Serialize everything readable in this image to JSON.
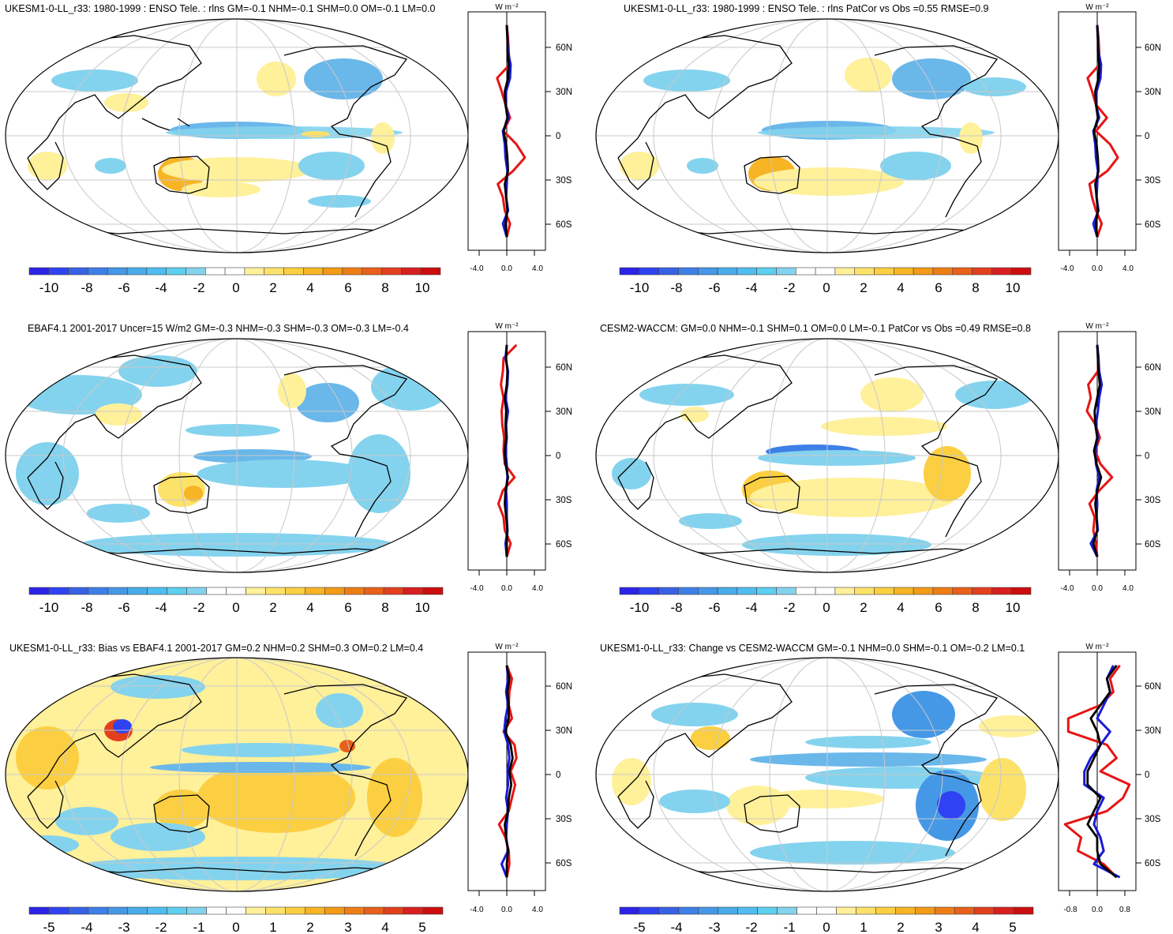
{
  "figure": {
    "colors": {
      "blue_ramp": [
        "#2b23e6",
        "#2f43f2",
        "#3762e6",
        "#3e7fe8",
        "#4598e6",
        "#49abea",
        "#50bdf0",
        "#5ecfee",
        "#84d3ee",
        "#ffffff",
        "#ffffff",
        "#fff09a",
        "#fde26a",
        "#fbcf41",
        "#f7b424",
        "#f39a17",
        "#ee7d15",
        "#e8601a",
        "#e2401d",
        "#d81f1f",
        "#cc0d0d"
      ],
      "zonal_red": "#e81414",
      "zonal_blue": "#1a1ad6",
      "zonal_black": "#000000",
      "grid": "#c8c8c8"
    }
  },
  "panels": [
    {
      "id": "p1",
      "title": "UKESM1-0-LL_r33: 1980-1999 : ENSO Tele. : rlns GM=-0.1 NHM=-0.1 SHM=0.0 OM=-0.1 LM=0.0",
      "zonal": {
        "unit_label": "W m⁻²",
        "x_ticks": [
          "-4.0",
          "0.0",
          "4.0"
        ],
        "lat_ticks": [
          "60N",
          "30N",
          "0",
          "30S",
          "60S"
        ]
      },
      "colorbar": {
        "labels": [
          "-10",
          "-8",
          "-6",
          "-4",
          "-2",
          "0",
          "2",
          "4",
          "6",
          "8",
          "10"
        ]
      }
    },
    {
      "id": "p2",
      "title": "UKESM1-0-LL_r33: 1980-1999 : ENSO Tele. : rlns PatCor vs Obs =0.55 RMSE=0.9",
      "zonal": {
        "unit_label": "W m⁻²",
        "x_ticks": [
          "-4.0",
          "0.0",
          "4.0"
        ],
        "lat_ticks": [
          "60N",
          "30N",
          "0",
          "30S",
          "60S"
        ]
      },
      "colorbar": {
        "labels": [
          "-10",
          "-8",
          "-6",
          "-4",
          "-2",
          "0",
          "2",
          "4",
          "6",
          "8",
          "10"
        ]
      }
    },
    {
      "id": "p3",
      "title": "EBAF4.1 2001-2017 Uncer=15 W/m2 GM=-0.3 NHM=-0.3 SHM=-0.3 OM=-0.3 LM=-0.4",
      "zonal": {
        "unit_label": "W m⁻²",
        "x_ticks": [
          "-4.0",
          "0.0",
          "4.0"
        ],
        "lat_ticks": [
          "60N",
          "30N",
          "0",
          "30S",
          "60S"
        ]
      },
      "colorbar": {
        "labels": [
          "-10",
          "-8",
          "-6",
          "-4",
          "-2",
          "0",
          "2",
          "4",
          "6",
          "8",
          "10"
        ]
      }
    },
    {
      "id": "p4",
      "title": "CESM2-WACCM: GM=0.0 NHM=-0.1 SHM=0.1 OM=0.0 LM=-0.1 PatCor vs Obs =0.49 RMSE=0.8",
      "zonal": {
        "unit_label": "W m⁻²",
        "x_ticks": [
          "-4.0",
          "0.0",
          "4.0"
        ],
        "lat_ticks": [
          "60N",
          "30N",
          "0",
          "30S",
          "60S"
        ]
      },
      "colorbar": {
        "labels": [
          "-10",
          "-8",
          "-6",
          "-4",
          "-2",
          "0",
          "2",
          "4",
          "6",
          "8",
          "10"
        ]
      }
    },
    {
      "id": "p5",
      "title": "UKESM1-0-LL_r33: Bias vs EBAF4.1 2001-2017 GM=0.2 NHM=0.2 SHM=0.3 OM=0.2 LM=0.4",
      "zonal": {
        "unit_label": "W m⁻²",
        "x_ticks": [
          "-4.0",
          "0.0",
          "4.0"
        ],
        "lat_ticks": [
          "60N",
          "30N",
          "0",
          "30S",
          "60S"
        ]
      },
      "colorbar": {
        "labels": [
          "-5",
          "-4",
          "-3",
          "-2",
          "-1",
          "0",
          "1",
          "2",
          "3",
          "4",
          "5"
        ]
      }
    },
    {
      "id": "p6",
      "title": "UKESM1-0-LL_r33: Change vs CESM2-WACCM GM=-0.1 NHM=0.0 SHM=-0.1 OM=-0.2 LM=0.1",
      "zonal": {
        "unit_label": "W m⁻²",
        "x_ticks": [
          "-0.8",
          "0.0",
          "0.8"
        ],
        "lat_ticks": [
          "60N",
          "30N",
          "0",
          "30S",
          "60S"
        ]
      },
      "colorbar": {
        "labels": [
          "-5",
          "-4",
          "-3",
          "-2",
          "-1",
          "0",
          "1",
          "2",
          "3",
          "4",
          "5"
        ]
      }
    }
  ],
  "chart_data": [
    {
      "type": "line",
      "title": "UKESM1-0-LL_r33: 1980-1999 : ENSO Tele. : rlns GM=-0.1 NHM=-0.1 SHM=0.0 OM=-0.1 LM=0.0",
      "ylabel": "W m⁻²",
      "xlim": [
        -6,
        6
      ],
      "x_tick_labels": [
        "-4.0",
        "0.0",
        "4.0"
      ],
      "y_tick_labels": [
        "60N",
        "30N",
        "0",
        "30S",
        "60S"
      ],
      "ylim": [
        -90,
        90
      ],
      "y": [
        80,
        70,
        60,
        50,
        40,
        30,
        20,
        10,
        0,
        -10,
        -20,
        -30,
        -40,
        -50,
        -60,
        -70,
        -80
      ],
      "series": [
        {
          "values": [
            0.0,
            0.2,
            0.3,
            0.4,
            -1.5,
            -0.8,
            -0.2,
            0.5,
            -0.5,
            1.5,
            2.8,
            1.0,
            -1.4,
            -0.6,
            -0.3,
            0.5,
            0.0
          ]
        },
        {
          "values": [
            0.0,
            0.1,
            0.2,
            0.6,
            0.5,
            -0.1,
            -0.2,
            0.3,
            -0.6,
            -0.3,
            -0.2,
            0.1,
            0.0,
            -0.1,
            0.2,
            -0.6,
            0.0
          ]
        },
        {
          "values": [
            0.0,
            0.1,
            0.1,
            0.3,
            0.2,
            -0.3,
            -0.2,
            0.1,
            -0.5,
            -0.1,
            0.1,
            0.2,
            -0.3,
            -0.1,
            0.1,
            -0.2,
            0.0
          ]
        }
      ]
    },
    {
      "type": "line",
      "title": "UKESM1-0-LL_r33: 1980-1999 : ENSO Tele. : rlns PatCor vs Obs =0.55 RMSE=0.9",
      "ylabel": "W m⁻²",
      "xlim": [
        -6,
        6
      ],
      "x_tick_labels": [
        "-4.0",
        "0.0",
        "4.0"
      ],
      "y_tick_labels": [
        "60N",
        "30N",
        "0",
        "30S",
        "60S"
      ],
      "ylim": [
        -90,
        90
      ],
      "y": [
        80,
        70,
        60,
        50,
        40,
        30,
        20,
        10,
        0,
        -10,
        -20,
        -30,
        -40,
        -50,
        -60,
        -70,
        -80
      ],
      "series": [
        {
          "values": [
            0.0,
            0.2,
            0.3,
            0.3,
            -1.5,
            -0.8,
            -0.2,
            1.5,
            -0.2,
            2.0,
            3.2,
            1.6,
            -1.2,
            -0.8,
            -0.2,
            0.7,
            0.0
          ]
        },
        {
          "values": [
            0.0,
            0.1,
            0.2,
            0.6,
            0.5,
            -0.1,
            -0.2,
            0.3,
            -0.6,
            -0.3,
            -0.2,
            0.1,
            0.0,
            -0.1,
            0.2,
            -0.6,
            0.0
          ]
        },
        {
          "values": [
            0.0,
            0.1,
            0.1,
            0.3,
            0.2,
            -0.3,
            -0.2,
            0.1,
            -0.5,
            -0.1,
            0.1,
            0.2,
            -0.3,
            -0.1,
            0.1,
            -0.2,
            0.0
          ]
        }
      ]
    },
    {
      "type": "line",
      "title": "EBAF4.1 2001-2017 Uncer=15 W/m2 GM=-0.3 NHM=-0.3 SHM=-0.3 OM=-0.3 LM=-0.4",
      "ylabel": "W m⁻²",
      "xlim": [
        -6,
        6
      ],
      "x_tick_labels": [
        "-4.0",
        "0.0",
        "4.0"
      ],
      "y_tick_labels": [
        "60N",
        "30N",
        "0",
        "30S",
        "60S"
      ],
      "ylim": [
        -90,
        90
      ],
      "y": [
        80,
        70,
        60,
        50,
        40,
        30,
        20,
        10,
        0,
        -10,
        -20,
        -30,
        -40,
        -50,
        -60,
        -70,
        -80
      ],
      "series": [
        {
          "values": [
            1.5,
            -0.5,
            -0.6,
            -0.9,
            -0.5,
            -0.8,
            -0.7,
            -0.4,
            -0.5,
            -0.3,
            1.2,
            -0.6,
            -1.3,
            -0.5,
            -0.3,
            0.6,
            0.0
          ]
        },
        {
          "values": [
            0.0,
            -0.2,
            0.2,
            0.1,
            -0.2,
            0.2,
            -0.1,
            0.0,
            -0.2,
            0.0,
            0.1,
            -0.1,
            0.0,
            0.0,
            0.1,
            -0.2,
            0.0
          ]
        },
        {
          "values": [
            0.0,
            -0.1,
            0.1,
            0.0,
            -0.3,
            -0.1,
            -0.2,
            -0.1,
            -0.3,
            -0.2,
            0.2,
            -0.2,
            -0.3,
            -0.1,
            0.1,
            0.0,
            0.0
          ]
        }
      ]
    },
    {
      "type": "line",
      "title": "CESM2-WACCM: GM=0.0 NHM=-0.1 SHM=0.1 OM=0.0 LM=-0.1 PatCor vs Obs =0.49 RMSE=0.8",
      "ylabel": "W m⁻²",
      "xlim": [
        -6,
        6
      ],
      "x_tick_labels": [
        "-4.0",
        "0.0",
        "4.0"
      ],
      "y_tick_labels": [
        "60N",
        "30N",
        "0",
        "30S",
        "60S"
      ],
      "ylim": [
        -90,
        90
      ],
      "y": [
        80,
        70,
        60,
        50,
        40,
        30,
        20,
        10,
        0,
        -10,
        -20,
        -30,
        -40,
        -50,
        -60,
        -70,
        -80
      ],
      "series": [
        {
          "values": [
            0.0,
            0.2,
            0.1,
            -1.4,
            -1.0,
            -1.6,
            -0.3,
            0.4,
            -0.3,
            0.5,
            2.3,
            0.3,
            -1.2,
            -0.4,
            -0.6,
            -0.2,
            0.0
          ]
        },
        {
          "values": [
            0.0,
            0.2,
            0.3,
            0.7,
            0.3,
            0.1,
            -0.2,
            0.1,
            -0.3,
            -0.2,
            0.3,
            -0.1,
            0.0,
            -0.1,
            0.1,
            -1.0,
            0.0
          ]
        },
        {
          "values": [
            0.0,
            0.1,
            0.2,
            0.4,
            0.0,
            -0.4,
            -0.3,
            0.0,
            -0.5,
            -0.1,
            0.6,
            0.0,
            -0.3,
            -0.1,
            0.0,
            -0.6,
            0.0
          ]
        }
      ]
    },
    {
      "type": "line",
      "title": "UKESM1-0-LL_r33: Bias vs EBAF4.1 2001-2017 GM=0.2 NHM=0.2 SHM=0.3 OM=0.2 LM=0.4",
      "ylabel": "W m⁻²",
      "xlim": [
        -6,
        6
      ],
      "x_tick_labels": [
        "-4.0",
        "0.0",
        "4.0"
      ],
      "y_tick_labels": [
        "60N",
        "30N",
        "0",
        "30S",
        "60S"
      ],
      "ylim": [
        -90,
        90
      ],
      "y": [
        80,
        70,
        60,
        50,
        40,
        30,
        20,
        10,
        0,
        -10,
        -20,
        -30,
        -40,
        -50,
        -60,
        -70,
        -80
      ],
      "series": [
        {
          "values": [
            0.0,
            0.8,
            0.4,
            0.3,
            0.8,
            -0.5,
            1.2,
            1.5,
            0.6,
            1.3,
            0.8,
            0.3,
            -1.2,
            -0.2,
            0.3,
            0.4,
            0.0
          ]
        },
        {
          "values": [
            0.0,
            0.2,
            -0.1,
            0.2,
            -0.2,
            -0.4,
            0.2,
            0.4,
            0.1,
            0.2,
            -0.1,
            0.2,
            0.0,
            -0.1,
            0.2,
            -0.8,
            0.0
          ]
        },
        {
          "values": [
            0.0,
            0.4,
            0.1,
            0.3,
            0.3,
            -0.2,
            0.6,
            0.9,
            0.4,
            0.7,
            0.3,
            0.2,
            -0.3,
            -0.1,
            0.2,
            0.0,
            0.0
          ]
        }
      ]
    },
    {
      "type": "line",
      "title": "UKESM1-0-LL_r33: Change vs CESM2-WACCM GM=-0.1 NHM=0.0 SHM=-0.1 OM=-0.2 LM=0.1",
      "ylabel": "W m⁻²",
      "xlim": [
        -1.2,
        1.2
      ],
      "x_tick_labels": [
        "-0.8",
        "0.0",
        "0.8"
      ],
      "y_tick_labels": [
        "60N",
        "30N",
        "0",
        "30S",
        "60S"
      ],
      "ylim": [
        -90,
        90
      ],
      "y": [
        80,
        70,
        60,
        50,
        40,
        30,
        20,
        10,
        0,
        -10,
        -20,
        -30,
        -40,
        -50,
        -60,
        -70,
        -80
      ],
      "series": [
        {
          "values": [
            0.7,
            0.4,
            0.5,
            0.1,
            -0.9,
            -0.9,
            0.3,
            0.6,
            0.1,
            1.0,
            0.8,
            0.3,
            -1.0,
            -0.5,
            -0.6,
            0.2,
            0.6
          ]
        },
        {
          "values": [
            0.5,
            0.3,
            0.4,
            0.2,
            0.0,
            0.4,
            0.1,
            -0.2,
            -0.4,
            -0.4,
            0.2,
            0.0,
            -0.1,
            0.1,
            0.2,
            -0.1,
            0.7
          ]
        },
        {
          "values": [
            0.6,
            0.3,
            0.4,
            0.1,
            -0.2,
            0.0,
            0.1,
            -0.1,
            -0.3,
            -0.3,
            0.1,
            -0.1,
            -0.3,
            0.0,
            0.0,
            0.1,
            0.6
          ]
        }
      ]
    }
  ]
}
